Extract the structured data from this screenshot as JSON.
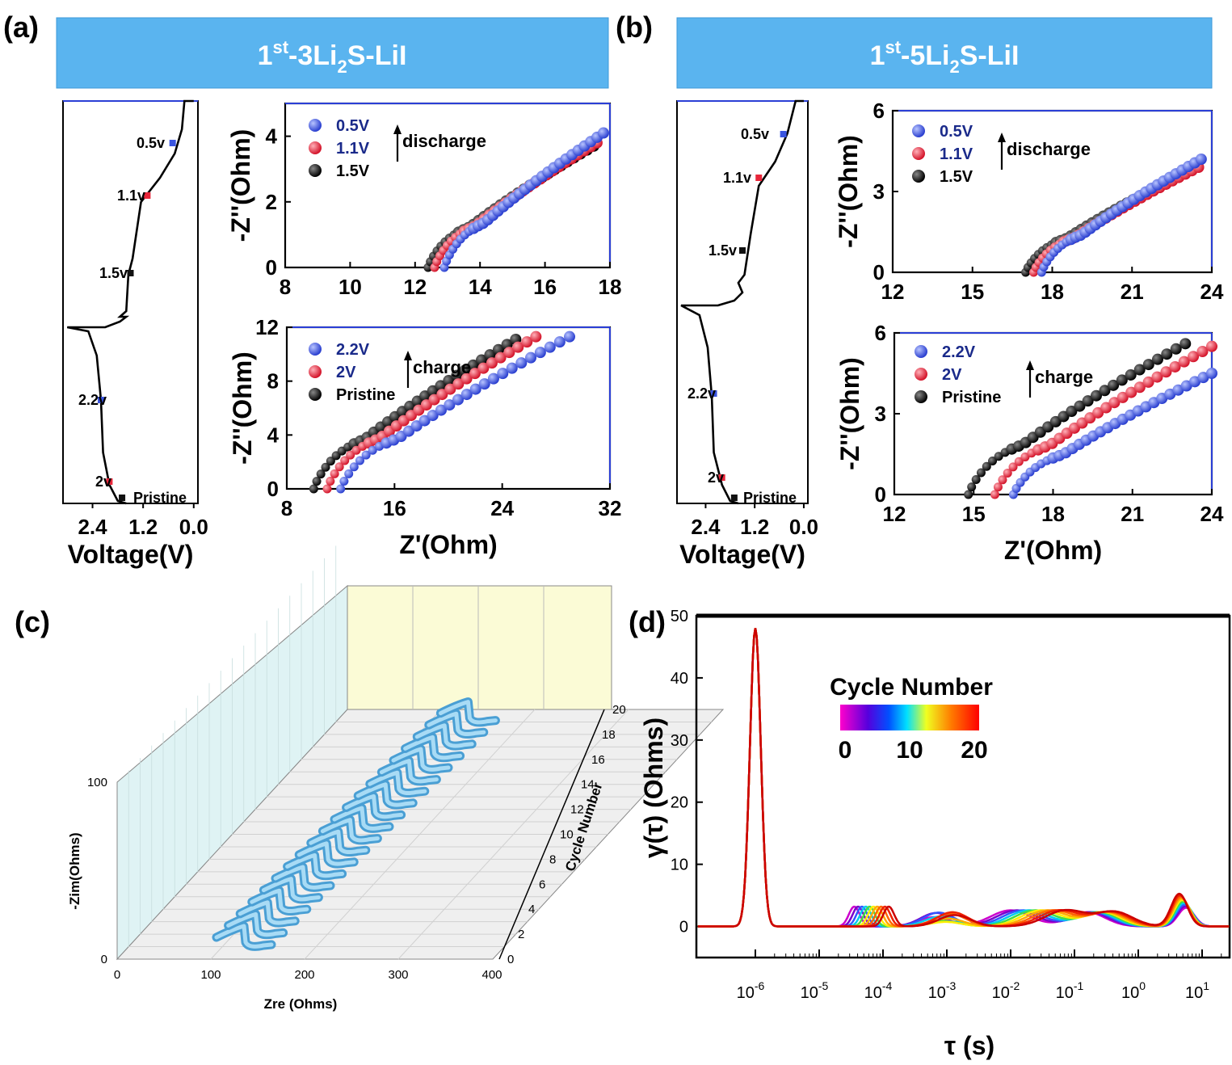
{
  "panels": {
    "a": {
      "label": "(a)",
      "banner": {
        "prefix": "1",
        "sup": "st",
        "mid": "-3Li",
        "sub": "2",
        "suffix": "S-LiI"
      }
    },
    "b": {
      "label": "(b)",
      "banner": {
        "prefix": "1",
        "sup": "st",
        "mid": "-5Li",
        "sub": "2",
        "suffix": "S-LiI"
      }
    },
    "c": {
      "label": "(c)"
    },
    "d": {
      "label": "(d)"
    }
  },
  "colors": {
    "banner": "#5ab4ef",
    "blue": "#3a55e0",
    "red": "#e8263a",
    "black": "#111111",
    "plane_left": "#dff3f4",
    "plane_back": "#fbfbd6",
    "plane_floor": "#efefef",
    "tube": "#7cc2e8"
  },
  "chart_data": [
    {
      "id": "a-voltage",
      "type": "line",
      "xlabel": "Voltage(V)",
      "xticks": [
        2.4,
        1.2,
        0.0
      ],
      "xlim": [
        3.1,
        -0.1
      ],
      "markers": [
        {
          "label": "0.5v",
          "voltage": 0.5,
          "color": "blue"
        },
        {
          "label": "1.1v",
          "voltage": 1.1,
          "color": "red"
        },
        {
          "label": "1.5v",
          "voltage": 1.5,
          "color": "black"
        },
        {
          "label": "2.2v",
          "voltage": 2.2,
          "color": "blue"
        },
        {
          "label": "2v",
          "voltage": 2.0,
          "color": "red"
        },
        {
          "label": "Pristine",
          "voltage": 1.7,
          "color": "black"
        }
      ]
    },
    {
      "id": "a-discharge",
      "type": "scatter",
      "xticks": [
        8,
        10,
        12,
        14,
        16,
        18
      ],
      "xlim": [
        8,
        18
      ],
      "ylabel": "-Z''(Ohm)",
      "yticks": [
        0,
        2,
        4
      ],
      "ylim": [
        0,
        5
      ],
      "arrow_label": "discharge",
      "series": [
        {
          "name": "0.5V",
          "color": "blue",
          "start": [
            12.9,
            0
          ],
          "end": [
            17.8,
            4.1
          ]
        },
        {
          "name": "1.1V",
          "color": "red",
          "start": [
            12.6,
            0
          ],
          "end": [
            17.6,
            3.8
          ]
        },
        {
          "name": "1.5V",
          "color": "black",
          "start": [
            12.4,
            0
          ],
          "end": [
            17.5,
            3.7
          ]
        }
      ]
    },
    {
      "id": "a-charge",
      "type": "scatter",
      "xticks": [
        8,
        16,
        24,
        32
      ],
      "xlim": [
        8,
        32
      ],
      "xlabel": "Z'(Ohm)",
      "ylabel": "-Z''(Ohm)",
      "yticks": [
        0,
        4,
        8,
        12
      ],
      "ylim": [
        0,
        12
      ],
      "arrow_label": "charge",
      "series": [
        {
          "name": "2.2V",
          "color": "blue",
          "start": [
            12.0,
            0
          ],
          "end": [
            29.0,
            11.3
          ]
        },
        {
          "name": "2V",
          "color": "red",
          "start": [
            11.0,
            0
          ],
          "end": [
            26.5,
            11.3
          ]
        },
        {
          "name": "Pristine",
          "color": "black",
          "start": [
            10.0,
            0
          ],
          "end": [
            25.0,
            11.1
          ]
        }
      ]
    },
    {
      "id": "b-voltage",
      "type": "line",
      "xlabel": "Voltage(V)",
      "xticks": [
        2.4,
        1.2,
        0.0
      ],
      "xlim": [
        3.1,
        -0.1
      ],
      "markers": [
        {
          "label": "0.5v",
          "voltage": 0.5,
          "color": "blue"
        },
        {
          "label": "1.1v",
          "voltage": 1.1,
          "color": "red"
        },
        {
          "label": "1.5v",
          "voltage": 1.5,
          "color": "black"
        },
        {
          "label": "2.2v",
          "voltage": 2.2,
          "color": "blue"
        },
        {
          "label": "2v",
          "voltage": 2.0,
          "color": "red"
        },
        {
          "label": "Pristine",
          "voltage": 1.7,
          "color": "black"
        }
      ]
    },
    {
      "id": "b-discharge",
      "type": "scatter",
      "xticks": [
        12,
        15,
        18,
        21,
        24
      ],
      "xlim": [
        12,
        24
      ],
      "ylabel": "-Z''(Ohm)",
      "yticks": [
        0,
        3,
        6
      ],
      "ylim": [
        0,
        6
      ],
      "arrow_label": "discharge",
      "series": [
        {
          "name": "0.5V",
          "color": "blue",
          "start": [
            17.6,
            0
          ],
          "end": [
            23.6,
            4.2
          ]
        },
        {
          "name": "1.1V",
          "color": "red",
          "start": [
            17.3,
            0
          ],
          "end": [
            23.5,
            3.9
          ]
        },
        {
          "name": "1.5V",
          "color": "black",
          "start": [
            17.0,
            0
          ],
          "end": [
            23.2,
            3.8
          ]
        }
      ]
    },
    {
      "id": "b-charge",
      "type": "scatter",
      "xticks": [
        12,
        15,
        18,
        21,
        24
      ],
      "xlim": [
        12,
        24
      ],
      "xlabel": "Z'(Ohm)",
      "ylabel": "-Z''(Ohm)",
      "yticks": [
        0,
        3,
        6
      ],
      "ylim": [
        0,
        6
      ],
      "arrow_label": "charge",
      "series": [
        {
          "name": "2.2V",
          "color": "blue",
          "start": [
            16.5,
            0
          ],
          "end": [
            24.0,
            4.5
          ]
        },
        {
          "name": "2V",
          "color": "red",
          "start": [
            15.8,
            0
          ],
          "end": [
            24.0,
            5.5
          ]
        },
        {
          "name": "Pristine",
          "color": "black",
          "start": [
            14.8,
            0
          ],
          "end": [
            23.0,
            5.6
          ]
        }
      ]
    },
    {
      "id": "c-3d",
      "type": "line",
      "xlabel": "Zre (Ohms)",
      "xticks": [
        0,
        100,
        200,
        300,
        400
      ],
      "ylabel": "-Zim(Ohms)",
      "yticks": [
        0,
        100
      ],
      "zlabel": "Cycle Number",
      "zticks": [
        0,
        2,
        4,
        6,
        8,
        10,
        12,
        14,
        16,
        18,
        20
      ],
      "cycles": 20
    },
    {
      "id": "d-drt",
      "type": "line",
      "xlabel": "τ (s)",
      "ylabel": "γ(τ) (Ohms)",
      "yticks": [
        0,
        10,
        20,
        30,
        40,
        50
      ],
      "ylim": [
        -5,
        50
      ],
      "xticks": [
        -6,
        -5,
        -4,
        -3,
        -2,
        -1,
        0,
        1
      ],
      "colorbar": {
        "title": "Cycle Number",
        "ticks": [
          "0",
          "10",
          "20"
        ]
      },
      "peak_main": {
        "tau_log": -6,
        "height": 48
      }
    }
  ]
}
